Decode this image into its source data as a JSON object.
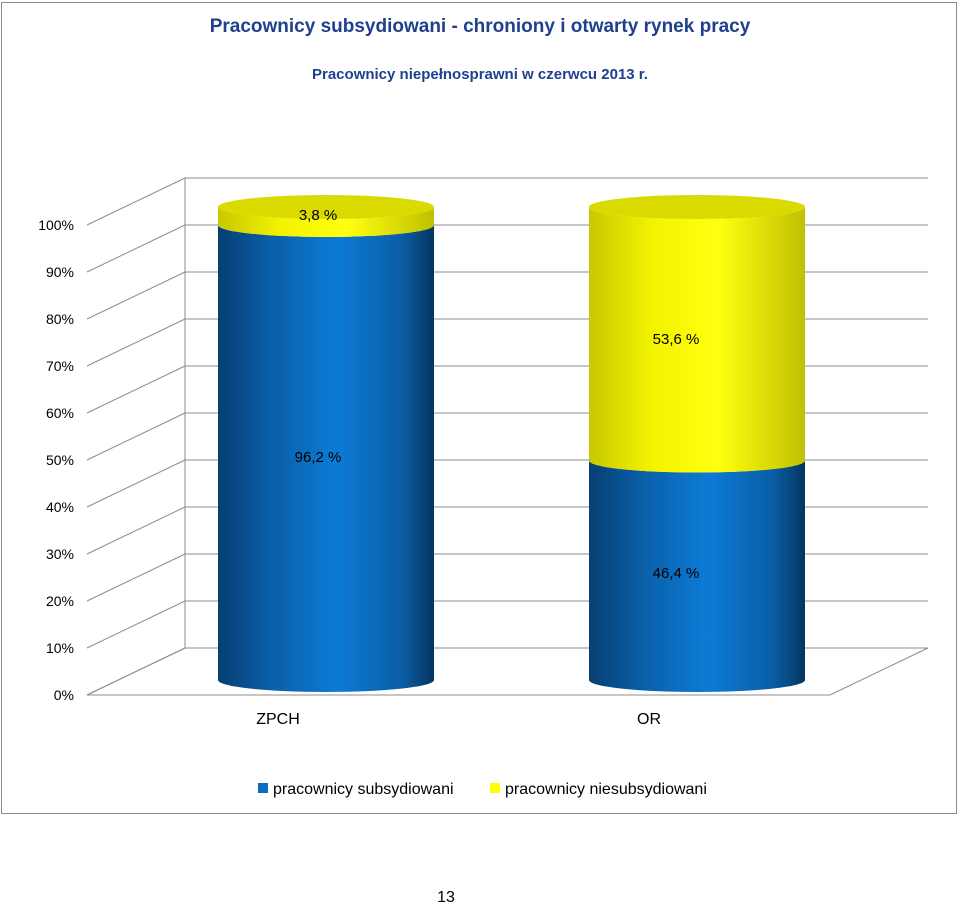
{
  "page_number": "13",
  "colors": {
    "subsidized": "#0b6dbd",
    "unsubsidized": "#ffff00",
    "title": "#1f3f8f",
    "grid": "#8c8c8c"
  },
  "chart_data": {
    "type": "bar",
    "stacked": true,
    "percent_stacked": true,
    "three_d": true,
    "title": "Pracownicy subsydiowani - chroniony i otwarty rynek pracy",
    "subtitle": "Pracownicy niepełnosprawni w czerwcu 2013 r.",
    "categories": [
      "ZPCH",
      "OR"
    ],
    "series": [
      {
        "name": "pracownicy subsydiowani",
        "values": [
          96.2,
          46.4
        ],
        "labels": [
          "96,2 %",
          "46,4 %"
        ],
        "color": "#0b6dbd"
      },
      {
        "name": "pracownicy niesubsydiowani",
        "values": [
          3.8,
          53.6
        ],
        "labels": [
          "3,8 %",
          "53,6 %"
        ],
        "color": "#ffff00"
      }
    ],
    "ylim": [
      0,
      100
    ],
    "y_ticks": [
      "0%",
      "10%",
      "20%",
      "30%",
      "40%",
      "50%",
      "60%",
      "70%",
      "80%",
      "90%",
      "100%"
    ],
    "grid": true,
    "legend": "bottom"
  }
}
